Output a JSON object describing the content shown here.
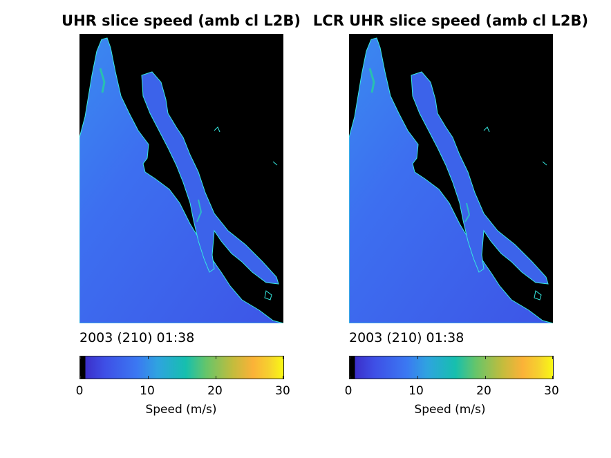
{
  "panels": [
    {
      "title": "UHR slice speed (amb cl L2B)",
      "timestamp": "2003 (210) 01:38",
      "colorbar": {
        "ticks": [
          "0",
          "10",
          "20",
          "30"
        ],
        "label": "Speed (m/s)",
        "min": 0,
        "max": 30,
        "colormap": "parula"
      }
    },
    {
      "title": "LCR UHR slice speed (amb cl L2B)",
      "timestamp": "2003 (210) 01:38",
      "colorbar": {
        "ticks": [
          "0",
          "10",
          "20",
          "30"
        ],
        "label": "Speed (m/s)",
        "min": 0,
        "max": 30,
        "colormap": "parula"
      }
    }
  ],
  "colors": {
    "land": "#000000",
    "ocean_speed_dominant": "#3d6cf0",
    "coastline": "#35e8e0",
    "background": "#ffffff"
  }
}
